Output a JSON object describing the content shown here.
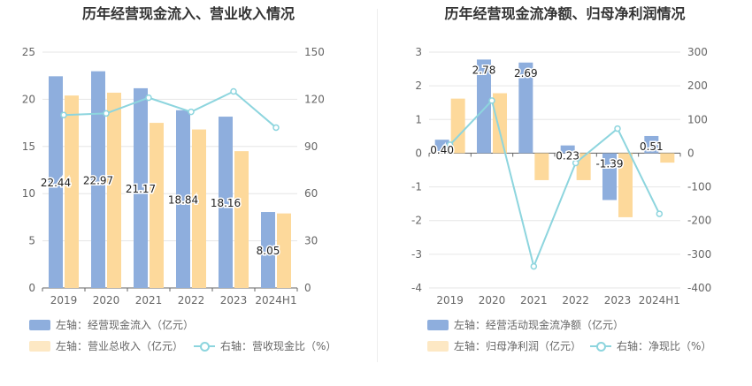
{
  "chart_data": [
    {
      "type": "bar",
      "title": "历年经营现金流入、营业收入情况",
      "categories": [
        "2019",
        "2020",
        "2021",
        "2022",
        "2023",
        "2024H1"
      ],
      "y_left": {
        "ticks": [
          "0",
          "5",
          "10",
          "15",
          "20",
          "25"
        ],
        "range": [
          0,
          25
        ]
      },
      "y_right": {
        "ticks": [
          "0",
          "30",
          "60",
          "90",
          "120",
          "150"
        ],
        "range": [
          0,
          150
        ]
      },
      "series": [
        {
          "name": "左轴：经营现金流入（亿元）",
          "kind": "bar",
          "axis": "left",
          "color": "#8eaedd",
          "values": [
            22.44,
            22.97,
            21.17,
            18.84,
            18.16,
            8.05
          ],
          "labels": [
            "22.44",
            "22.97",
            "21.17",
            "18.84",
            "18.16",
            "8.05"
          ]
        },
        {
          "name": "左轴：营业总收入（亿元）",
          "kind": "bar",
          "axis": "left",
          "color": "#fdd99b",
          "values": [
            20.4,
            20.7,
            17.5,
            16.8,
            14.5,
            7.9
          ]
        },
        {
          "name": "右轴：营收现金比（%）",
          "kind": "line",
          "axis": "right",
          "color": "#8dd5de",
          "values": [
            110,
            111,
            121,
            112,
            125,
            102
          ]
        }
      ]
    },
    {
      "type": "bar",
      "title": "历年经营现金流净额、归母净利润情况",
      "categories": [
        "2019",
        "2020",
        "2021",
        "2022",
        "2023",
        "2024H1"
      ],
      "y_left": {
        "ticks": [
          "-4",
          "-3",
          "-2",
          "-1",
          "0",
          "1",
          "2",
          "3"
        ],
        "range": [
          -4,
          3
        ]
      },
      "y_right": {
        "ticks": [
          "-400",
          "-300",
          "-200",
          "-100",
          "0",
          "100",
          "200",
          "300"
        ],
        "range": [
          -400,
          300
        ]
      },
      "series": [
        {
          "name": "左轴：经营活动现金流净额（亿元）",
          "kind": "bar",
          "axis": "left",
          "color": "#8eaedd",
          "values": [
            0.4,
            2.78,
            2.69,
            0.23,
            -1.39,
            0.51
          ],
          "labels": [
            "0.40",
            "2.78",
            "2.69",
            "0.23",
            "-1.39",
            "0.51"
          ]
        },
        {
          "name": "左轴：归母净利润（亿元）",
          "kind": "bar",
          "axis": "left",
          "color": "#fdd99b",
          "values": [
            1.62,
            1.78,
            -0.8,
            -0.8,
            -1.9,
            -0.28
          ]
        },
        {
          "name": "右轴：净现比（%）",
          "kind": "line",
          "axis": "right",
          "color": "#8dd5de",
          "values": [
            25,
            156,
            -336,
            -29,
            73,
            -180
          ]
        }
      ]
    }
  ]
}
